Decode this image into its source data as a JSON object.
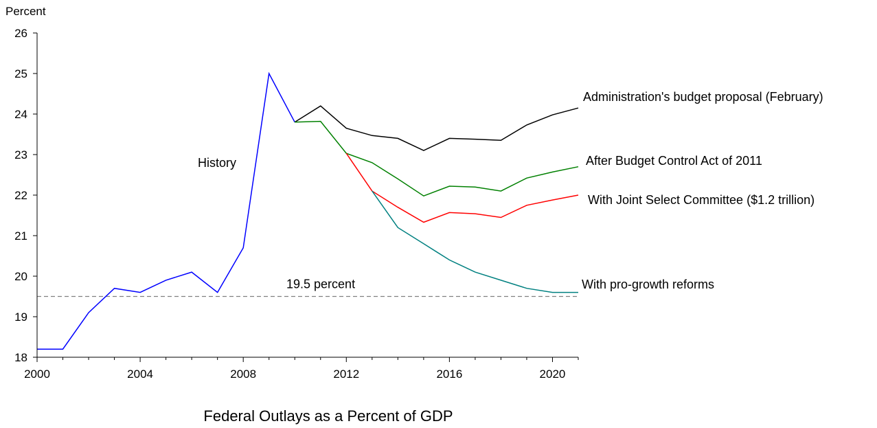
{
  "chart_data": {
    "type": "line",
    "title": "Federal Outlays as a Percent of GDP",
    "ylabel": "Percent",
    "xlabel": "",
    "xlim": [
      2000,
      2021
    ],
    "ylim": [
      18,
      26
    ],
    "x_ticks": [
      2000,
      2004,
      2008,
      2012,
      2016,
      2020
    ],
    "y_ticks": [
      18,
      19,
      20,
      21,
      22,
      23,
      24,
      25,
      26
    ],
    "grid": false,
    "reference_line": {
      "value": 19.5,
      "label": "19.5 percent",
      "style": "dashed",
      "color": "#808080"
    },
    "series": [
      {
        "name": "History",
        "color": "#0000ff",
        "x": [
          2000,
          2001,
          2002,
          2003,
          2004,
          2005,
          2006,
          2007,
          2008,
          2009,
          2010
        ],
        "values": [
          18.2,
          18.2,
          19.1,
          19.7,
          19.6,
          19.9,
          20.1,
          19.6,
          20.7,
          25.0,
          23.8
        ]
      },
      {
        "name": "Administration's budget proposal (February)",
        "color": "#000000",
        "x": [
          2010,
          2011,
          2012,
          2013,
          2014,
          2015,
          2016,
          2017,
          2018,
          2019,
          2020,
          2021
        ],
        "values": [
          23.8,
          24.2,
          23.65,
          23.47,
          23.4,
          23.1,
          23.4,
          23.38,
          23.35,
          23.73,
          23.98,
          24.15
        ]
      },
      {
        "name": "After Budget Control Act of 2011",
        "color": "#008000",
        "x": [
          2010,
          2011,
          2012,
          2013,
          2014,
          2015,
          2016,
          2017,
          2018,
          2019,
          2020,
          2021
        ],
        "values": [
          23.8,
          23.82,
          23.03,
          22.8,
          22.4,
          21.98,
          22.22,
          22.2,
          22.1,
          22.42,
          22.57,
          22.7
        ]
      },
      {
        "name": "With Joint Select Committee ($1.2 trillion)",
        "color": "#ff0000",
        "x": [
          2012,
          2013,
          2014,
          2015,
          2016,
          2017,
          2018,
          2019,
          2020,
          2021
        ],
        "values": [
          23.03,
          22.1,
          21.7,
          21.33,
          21.57,
          21.54,
          21.45,
          21.75,
          21.88,
          22.0
        ]
      },
      {
        "name": "With pro-growth reforms",
        "color": "#008080",
        "x": [
          2013,
          2014,
          2015,
          2016,
          2017,
          2018,
          2019,
          2020,
          2021
        ],
        "values": [
          22.1,
          21.2,
          20.8,
          20.4,
          20.1,
          19.9,
          19.7,
          19.6,
          19.6
        ]
      }
    ]
  }
}
